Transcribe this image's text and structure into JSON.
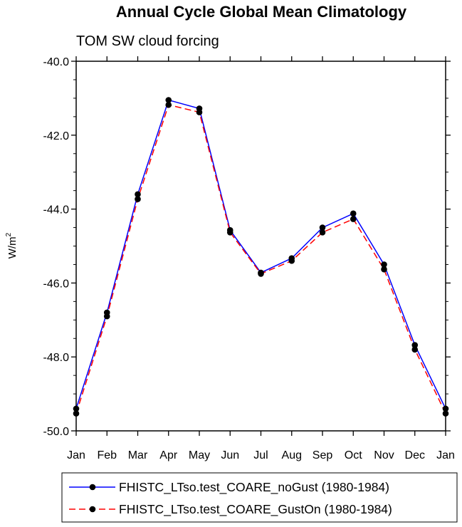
{
  "chart_data": {
    "type": "line",
    "title": "Annual Cycle Global Mean Climatology",
    "subtitle": "TOM SW cloud forcing",
    "ylabel_base": "W/m",
    "ylabel_exp": "2",
    "xlabel": "",
    "categories": [
      "Jan",
      "Feb",
      "Mar",
      "Apr",
      "May",
      "Jun",
      "Jul",
      "Aug",
      "Sep",
      "Oct",
      "Nov",
      "Dec",
      "Jan"
    ],
    "ylim": [
      -50.0,
      -40.0
    ],
    "yticks": [
      -50.0,
      -48.0,
      -46.0,
      -44.0,
      -42.0,
      -40.0
    ],
    "ytick_labels": [
      "-50.0",
      "-48.0",
      "-46.0",
      "-44.0",
      "-42.0",
      "-40.0"
    ],
    "series": [
      {
        "name": "FHISTC_LTso.test_COARE_noGust (1980-1984)",
        "color": "#0000ff",
        "dash": "solid",
        "values": [
          -49.4,
          -46.8,
          -43.6,
          -41.05,
          -41.28,
          -44.57,
          -45.72,
          -45.33,
          -44.5,
          -44.12,
          -45.5,
          -47.68,
          -49.4
        ]
      },
      {
        "name": "FHISTC_LTso.test_COARE_GustOn (1980-1984)",
        "color": "#ff0000",
        "dash": "dashed",
        "values": [
          -49.53,
          -46.9,
          -43.73,
          -41.18,
          -41.38,
          -44.63,
          -45.75,
          -45.4,
          -44.63,
          -44.27,
          -45.63,
          -47.8,
          -49.53
        ]
      }
    ],
    "legend_position": "bottom"
  }
}
